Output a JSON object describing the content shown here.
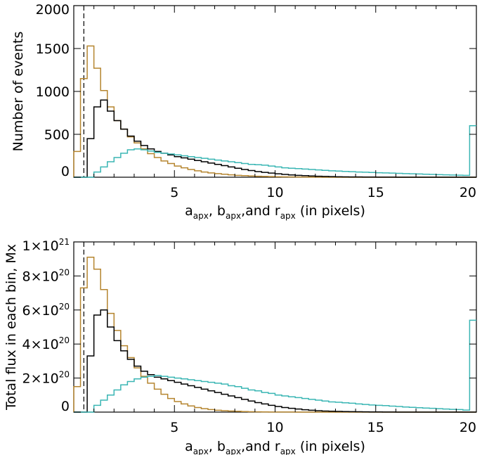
{
  "chart_data": [
    {
      "type": "line",
      "style": "histogram-step",
      "ylabel": "Number of events",
      "xlabel": {
        "parts": [
          "a",
          "apx",
          ", b",
          "apx",
          ",and r",
          "apx",
          " (in pixels)"
        ]
      },
      "xlim": [
        0,
        20
      ],
      "ylim": [
        0,
        2000
      ],
      "xticks": [
        5,
        10,
        15,
        20
      ],
      "yticks": [
        0,
        500,
        1000,
        1500,
        2000
      ],
      "ytick_labels": [
        "0",
        "500",
        "1000",
        "1500",
        "2000"
      ],
      "dashed_x": 0.5,
      "bin_width": 0.3333,
      "series": [
        {
          "name": "orange",
          "color": "#b5852f",
          "values": [
            300,
            1150,
            1530,
            1270,
            1010,
            820,
            660,
            560,
            470,
            400,
            330,
            275,
            230,
            190,
            160,
            130,
            110,
            90,
            75,
            60,
            50,
            42,
            35,
            28,
            22,
            18,
            14,
            11,
            9,
            7,
            5,
            4,
            3,
            2,
            2,
            1,
            1,
            0,
            0,
            0,
            0,
            0,
            0,
            0,
            0,
            0,
            0,
            0,
            0,
            0,
            0,
            0,
            0,
            0,
            0,
            0,
            0,
            0,
            0,
            0
          ]
        },
        {
          "name": "black",
          "color": "#000000",
          "values": [
            0,
            0,
            450,
            820,
            900,
            770,
            660,
            560,
            480,
            420,
            370,
            330,
            300,
            280,
            260,
            240,
            225,
            210,
            195,
            180,
            165,
            150,
            135,
            120,
            105,
            90,
            78,
            66,
            56,
            48,
            40,
            33,
            27,
            22,
            18,
            14,
            11,
            9,
            7,
            5,
            4,
            3,
            3,
            2,
            2,
            1,
            1,
            1,
            0,
            0,
            0,
            0,
            0,
            0,
            0,
            0,
            0,
            0,
            0,
            0
          ]
        },
        {
          "name": "teal",
          "color": "#3ab6b4",
          "values": [
            0,
            0,
            0,
            60,
            120,
            180,
            230,
            280,
            320,
            330,
            320,
            305,
            290,
            280,
            270,
            260,
            250,
            240,
            230,
            220,
            210,
            200,
            190,
            180,
            170,
            160,
            150,
            145,
            140,
            130,
            120,
            110,
            105,
            100,
            95,
            90,
            85,
            80,
            75,
            72,
            68,
            65,
            60,
            58,
            55,
            52,
            50,
            48,
            45,
            42,
            40,
            38,
            35,
            33,
            30,
            28,
            26,
            24,
            22,
            600
          ]
        }
      ]
    },
    {
      "type": "line",
      "style": "histogram-step",
      "ylabel": "Total flux in each bin, Mx",
      "xlabel": {
        "parts": [
          "a",
          "apx",
          ", b",
          "apx",
          ",and r",
          "apx",
          " (in pixels)"
        ]
      },
      "xlim": [
        0,
        20
      ],
      "ylim": [
        0,
        1e+21
      ],
      "xticks": [
        5,
        10,
        15,
        20
      ],
      "yticks": [
        0,
        2e+20,
        4e+20,
        6e+20,
        8e+20,
        1e+21
      ],
      "ytick_labels": [
        {
          "mant": "0",
          "exp": ""
        },
        {
          "mant": "2×10",
          "exp": "20"
        },
        {
          "mant": "4×10",
          "exp": "20"
        },
        {
          "mant": "6×10",
          "exp": "20"
        },
        {
          "mant": "8×10",
          "exp": "20"
        },
        {
          "mant": "1×10",
          "exp": "21"
        }
      ],
      "dashed_x": 0.5,
      "bin_width": 0.3333,
      "series": [
        {
          "name": "orange",
          "color": "#b5852f",
          "values": [
            1.5e+20,
            7.3e+20,
            9.1e+20,
            8.4e+20,
            7.2e+20,
            5.8e+20,
            4.8e+20,
            3.9e+20,
            3.2e+20,
            2.6e+20,
            2.1e+20,
            1.7e+20,
            1.35e+20,
            1.05e+20,
            8e+19,
            6.2e+19,
            4.8e+19,
            3.6e+19,
            2.7e+19,
            2e+19,
            1.5e+19,
            1.1e+19,
            8e+18,
            6e+18,
            4.5e+18,
            3e+18,
            2e+18,
            1.5e+18,
            1e+18,
            7e+17,
            5e+17,
            4e+17,
            3e+17,
            2e+17,
            1e+17,
            0,
            0,
            0,
            0,
            0,
            0,
            0,
            0,
            0,
            0,
            0,
            0,
            0,
            0,
            0,
            0,
            0,
            0,
            0,
            0,
            0,
            0,
            0,
            0,
            0
          ]
        },
        {
          "name": "black",
          "color": "#000000",
          "values": [
            0,
            0,
            3.3e+20,
            5.7e+20,
            6e+20,
            5e+20,
            4.2e+20,
            3.6e+20,
            3.1e+20,
            2.7e+20,
            2.4e+20,
            2.2e+20,
            2.05e+20,
            1.95e+20,
            1.85e+20,
            1.75e+20,
            1.65e+20,
            1.55e+20,
            1.45e+20,
            1.35e+20,
            1.25e+20,
            1.15e+20,
            1.05e+20,
            9.5e+19,
            8.5e+19,
            7.5e+19,
            6.5e+19,
            5.6e+19,
            4.8e+19,
            4e+19,
            3.3e+19,
            2.7e+19,
            2.2e+19,
            1.8e+19,
            1.4e+19,
            1.1e+19,
            8e+18,
            6e+18,
            5e+18,
            4e+18,
            3e+18,
            2.5e+18,
            2e+18,
            1.5e+18,
            1e+18,
            1e+18,
            5e+17,
            5e+17,
            0,
            0,
            0,
            0,
            0,
            0,
            0,
            0,
            0,
            0,
            0,
            0
          ]
        },
        {
          "name": "teal",
          "color": "#3ab6b4",
          "values": [
            0,
            0,
            0,
            4e+19,
            7e+19,
            1e+20,
            1.3e+20,
            1.6e+20,
            1.8e+20,
            1.95e+20,
            2.05e+20,
            2.1e+20,
            2.15e+20,
            2.1e+20,
            2.05e+20,
            2e+20,
            1.95e+20,
            1.9e+20,
            1.85e+20,
            1.8e+20,
            1.75e+20,
            1.7e+20,
            1.65e+20,
            1.55e+20,
            1.5e+20,
            1.4e+20,
            1.3e+20,
            1.25e+20,
            1.15e+20,
            1.1e+20,
            1e+20,
            9.5e+19,
            9e+19,
            8.5e+19,
            8e+19,
            7.5e+19,
            7e+19,
            6.5e+19,
            6e+19,
            5.8e+19,
            5.5e+19,
            5.2e+19,
            4.8e+19,
            4.5e+19,
            4.2e+19,
            4e+19,
            3.8e+19,
            3.5e+19,
            3.3e+19,
            3e+19,
            2.8e+19,
            2.6e+19,
            2.4e+19,
            2.2e+19,
            2e+19,
            1.8e+19,
            1.6e+19,
            1.5e+19,
            1.2e+19,
            5.4e+20
          ]
        }
      ]
    }
  ]
}
